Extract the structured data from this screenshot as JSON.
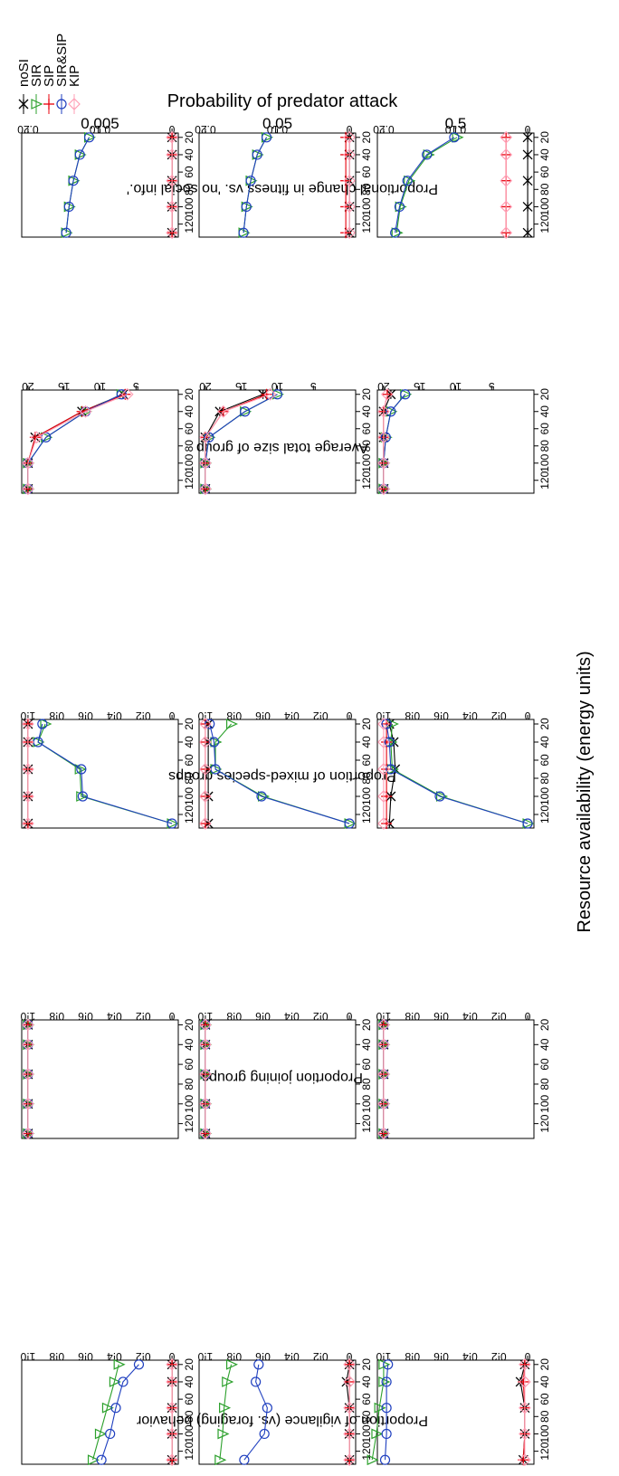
{
  "legend": {
    "items": [
      {
        "label": "noSI",
        "color": "#000000",
        "marker": "asterisk"
      },
      {
        "label": "SIR",
        "color": "#2ca02c",
        "marker": "triangle"
      },
      {
        "label": "SIP",
        "color": "#e8000b",
        "marker": "plus"
      },
      {
        "label": "SIR&SIP",
        "color": "#1f3fbf",
        "marker": "circle"
      },
      {
        "label": "KIP",
        "color": "#ff9fb5",
        "marker": "diamond"
      }
    ]
  },
  "strata_title": "Probability of predator attack",
  "strata": [
    "0.005",
    "0.05",
    "0.5"
  ],
  "shared_xlabel": "Resource availability (energy units)",
  "chart_data": [
    {
      "type": "line",
      "ylabel": "Proportion of vigilance (vs. foraging) behavior",
      "xlabel": "",
      "x": [
        20,
        40,
        70,
        100,
        130
      ],
      "xticks": [
        20,
        40,
        60,
        80,
        100,
        120
      ],
      "xlim": [
        15,
        135
      ],
      "ylim": [
        0,
        1
      ],
      "yticks": [
        0,
        0.2,
        0.4,
        0.6,
        0.8,
        1.0
      ],
      "yticklabels": [
        "0",
        "0.2",
        "0.4",
        "0.6",
        "0.8",
        "1.0"
      ],
      "panels": [
        {
          "series": {
            "noSI": [
              0,
              0,
              0,
              0,
              0
            ],
            "SIR": [
              0.37,
              0.4,
              0.45,
              0.5,
              0.55
            ],
            "SIP": [
              0,
              0,
              0,
              0,
              0
            ],
            "SIR&SIP": [
              0.23,
              0.34,
              0.39,
              0.43,
              0.49
            ],
            "KIP": [
              0,
              0,
              0,
              0,
              0
            ]
          }
        },
        {
          "series": {
            "noSI": [
              0,
              0.02,
              0,
              0,
              0
            ],
            "SIR": [
              0.82,
              0.85,
              0.87,
              0.88,
              0.9
            ],
            "SIP": [
              0,
              0,
              0,
              0,
              0
            ],
            "SIR&SIP": [
              0.63,
              0.65,
              0.57,
              0.59,
              0.73
            ],
            "KIP": [
              0,
              0,
              0,
              0,
              0
            ]
          }
        },
        {
          "series": {
            "noSI": [
              0.02,
              0.05,
              0.02,
              0.02,
              0.03
            ],
            "SIR": [
              1.0,
              1.0,
              1.03,
              1.05,
              1.08
            ],
            "SIP": [
              0.02,
              0.03,
              0.02,
              0.02,
              0.03
            ],
            "SIR&SIP": [
              0.97,
              0.98,
              0.98,
              0.98,
              0.99
            ],
            "KIP": [
              0.02,
              0.02,
              0.02,
              0.02,
              0.02
            ]
          }
        }
      ]
    },
    {
      "type": "line",
      "ylabel": "Proportion joining groups",
      "xlabel": "",
      "x": [
        20,
        40,
        70,
        100,
        130
      ],
      "xticks": [
        20,
        40,
        60,
        80,
        100,
        120
      ],
      "xlim": [
        15,
        135
      ],
      "ylim": [
        0,
        1
      ],
      "yticks": [
        0,
        0.2,
        0.4,
        0.6,
        0.8,
        1.0
      ],
      "yticklabels": [
        "0",
        "0.2",
        "0.4",
        "0.6",
        "0.8",
        "1.0"
      ],
      "panels": [
        {
          "series": {
            "noSI": [
              1,
              1,
              1,
              1,
              1
            ],
            "SIR": [
              1,
              1,
              1,
              1,
              1
            ],
            "SIP": [
              1,
              1,
              1,
              1,
              1
            ],
            "SIR&SIP": [
              1,
              1,
              1,
              1,
              1
            ],
            "KIP": [
              1,
              1,
              1,
              1,
              1
            ]
          }
        },
        {
          "series": {
            "noSI": [
              1,
              1,
              1,
              1,
              1
            ],
            "SIR": [
              1,
              1,
              1,
              1,
              1
            ],
            "SIP": [
              1,
              1,
              1,
              1,
              1
            ],
            "SIR&SIP": [
              1,
              1,
              1,
              1,
              1
            ],
            "KIP": [
              1,
              1,
              1,
              1,
              1
            ]
          }
        },
        {
          "series": {
            "noSI": [
              1,
              1,
              1,
              1,
              1
            ],
            "SIR": [
              1,
              1,
              1,
              1,
              1
            ],
            "SIP": [
              1,
              1,
              1,
              1,
              1
            ],
            "SIR&SIP": [
              1,
              1,
              1,
              1,
              1
            ],
            "KIP": [
              1,
              1,
              1,
              1,
              1
            ]
          }
        }
      ]
    },
    {
      "type": "line",
      "ylabel": "Proportion of mixed-species groups",
      "xlabel": "",
      "x": [
        20,
        40,
        70,
        100,
        130
      ],
      "xticks": [
        20,
        40,
        60,
        80,
        100,
        120
      ],
      "xlim": [
        15,
        135
      ],
      "ylim": [
        0,
        1
      ],
      "yticks": [
        0,
        0.2,
        0.4,
        0.6,
        0.8,
        1.0
      ],
      "yticklabels": [
        "0",
        "0.2",
        "0.4",
        "0.6",
        "0.8",
        "1.0"
      ],
      "panels": [
        {
          "series": {
            "noSI": [
              1,
              1,
              1,
              1,
              1
            ],
            "SIR": [
              0.88,
              0.93,
              0.64,
              0.63,
              0
            ],
            "SIP": [
              1,
              1,
              1,
              1,
              1
            ],
            "SIR&SIP": [
              0.9,
              0.93,
              0.63,
              0.62,
              0
            ],
            "KIP": [
              1,
              1,
              1,
              1,
              1
            ]
          }
        },
        {
          "series": {
            "noSI": [
              0.98,
              0.98,
              0.98,
              0.98,
              0.98
            ],
            "SIR": [
              0.82,
              0.93,
              0.93,
              0.6,
              0
            ],
            "SIP": [
              1,
              1,
              1,
              1,
              1
            ],
            "SIR&SIP": [
              0.97,
              0.94,
              0.93,
              0.61,
              0
            ],
            "KIP": [
              1,
              1,
              1,
              1,
              1
            ]
          }
        },
        {
          "series": {
            "noSI": [
              0.96,
              0.93,
              0.92,
              0.95,
              0.96
            ],
            "SIR": [
              0.94,
              0.95,
              0.94,
              0.6,
              0
            ],
            "SIP": [
              0.98,
              0.98,
              0.98,
              0.98,
              0.98
            ],
            "SIR&SIP": [
              0.98,
              0.96,
              0.95,
              0.61,
              0
            ],
            "KIP": [
              1,
              1,
              1,
              1,
              1
            ]
          }
        }
      ]
    },
    {
      "type": "line",
      "ylabel": "Average total size of group",
      "xlabel": "",
      "x": [
        20,
        40,
        70,
        100,
        130
      ],
      "xticks": [
        20,
        40,
        60,
        80,
        100,
        120
      ],
      "xlim": [
        15,
        135
      ],
      "ylim": [
        0,
        20
      ],
      "yticks": [
        5,
        10,
        15,
        20
      ],
      "yticklabels": [
        "5",
        "10",
        "15",
        "20"
      ],
      "panels": [
        {
          "series": {
            "noSI": [
              6.8,
              12.5,
              19.0,
              20,
              20
            ],
            "SIR": [
              7.0,
              12.0,
              17.5,
              20,
              20
            ],
            "SIP": [
              6.5,
              12.5,
              19.0,
              20,
              20
            ],
            "SIR&SIP": [
              7.0,
              12.0,
              17.5,
              20,
              20
            ],
            "KIP": [
              6.2,
              12.0,
              18.8,
              20,
              20
            ]
          }
        },
        {
          "series": {
            "noSI": [
              12.0,
              18.0,
              20,
              20,
              20
            ],
            "SIR": [
              10.0,
              14.5,
              19.5,
              20,
              20
            ],
            "SIP": [
              11.5,
              17.5,
              20,
              20,
              20
            ],
            "SIR&SIP": [
              10.0,
              14.5,
              19.5,
              20,
              20
            ],
            "KIP": [
              11.0,
              17.5,
              20,
              20,
              20
            ]
          }
        },
        {
          "series": {
            "noSI": [
              19.0,
              20,
              20,
              20,
              20
            ],
            "SIR": [
              17.0,
              19.0,
              19.7,
              20,
              20
            ],
            "SIP": [
              19.5,
              20,
              20,
              20,
              20
            ],
            "SIR&SIP": [
              17.0,
              19.0,
              19.7,
              20,
              20
            ],
            "KIP": [
              19.5,
              20,
              20,
              20,
              20
            ]
          }
        }
      ]
    },
    {
      "type": "line",
      "ylabel": "Proportional change in fitness vs. 'no social info.'",
      "xlabel": "",
      "x": [
        20,
        40,
        70,
        100,
        130
      ],
      "xticks": [
        20,
        40,
        60,
        80,
        100,
        120
      ],
      "xlim": [
        15,
        135
      ],
      "ylim": [
        0,
        0.2
      ],
      "yticks": [
        0,
        0.1,
        0.2
      ],
      "yticklabels": [
        "0",
        "0.10",
        "0.20"
      ],
      "panels": [
        {
          "series": {
            "noSI": [
              0,
              0,
              0,
              0,
              0
            ],
            "SIR": [
              0.115,
              0.128,
              0.137,
              0.143,
              0.147
            ],
            "SIP": [
              0,
              0,
              0,
              0,
              0
            ],
            "SIR&SIP": [
              0.115,
              0.128,
              0.137,
              0.143,
              0.147
            ],
            "KIP": [
              0,
              0,
              0,
              0,
              0
            ]
          }
        },
        {
          "series": {
            "noSI": [
              0,
              0,
              0,
              0,
              0
            ],
            "SIR": [
              0.115,
              0.128,
              0.137,
              0.143,
              0.147
            ],
            "SIP": [
              0.005,
              0.005,
              0.005,
              0.005,
              0.005
            ],
            "SIR&SIP": [
              0.115,
              0.128,
              0.137,
              0.143,
              0.147
            ],
            "KIP": [
              0,
              0,
              0,
              0,
              0
            ]
          }
        },
        {
          "series": {
            "noSI": [
              0,
              0,
              0,
              0,
              0
            ],
            "SIR": [
              0.098,
              0.138,
              0.165,
              0.177,
              0.182
            ],
            "SIP": [
              0.03,
              0.03,
              0.03,
              0.03,
              0.03
            ],
            "SIR&SIP": [
              0.102,
              0.14,
              0.167,
              0.178,
              0.184
            ],
            "KIP": [
              0.03,
              0.03,
              0.03,
              0.03,
              0.03
            ]
          }
        }
      ]
    }
  ]
}
